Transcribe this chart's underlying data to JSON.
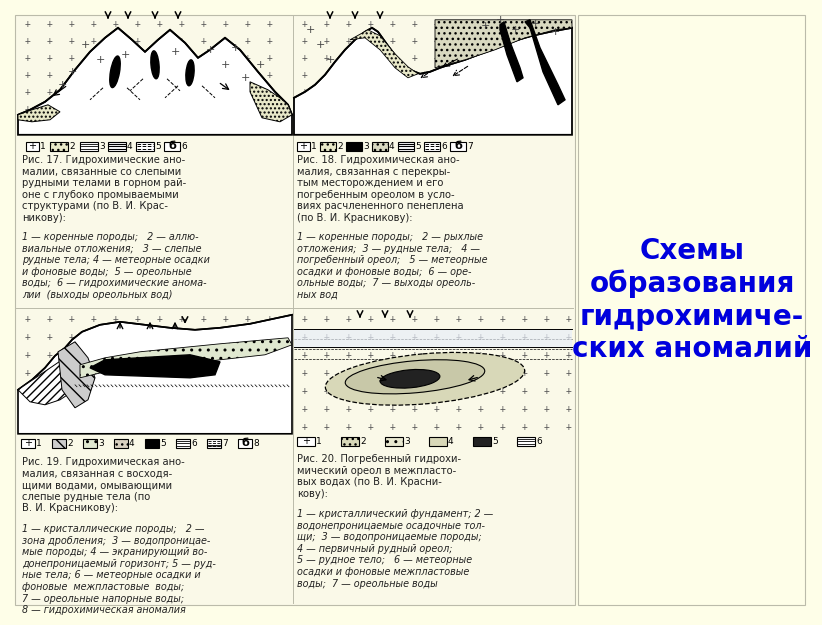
{
  "bg_color": "#fefee8",
  "content_bg": "#faf9e8",
  "right_bg": "#fefee8",
  "title_text": "Схемы\nобразования\nгидрохимиче-\nских аномалий",
  "title_color": "#0000dd",
  "title_fontsize": 20,
  "text_color": "#222222",
  "text_fontsize": 7.2,
  "fig17_caption": "Рис. 17. Гидрохимические ано-\nмалии, связанные со слепыми\nрудными телами в горном рай-\nоне с глубоко промываемыми\nструктурами (по В. И. Крас-\nникову):",
  "fig17_legend": "1 — коренные породы;   2 — аллю-\nвиальные отложения;   3 — слепые\nрудные тела; 4 — метеорные осадки\nи фоновые воды;  5 — ореольные\nводы;  6 — гидрохимические аномa-\nлии  (выходы ореольных вод)",
  "fig18_caption": "Рис. 18. Гидрохимическая ано-\nмалия, связанная с перекры-\nтым месторождением и его\nпогребенным ореолом в усло-\nвиях расчлененного пенеплена\n(по В. И. Красникову):",
  "fig18_legend": "1 — коренные породы;   2 — рыхлые\nотложения;  3 — рудные тела;   4 —\nпогребенный ореол;   5 — метеорные\nосадки и фоновые воды;  6 — оре-\nольные воды;  7 — выходы ореоль-\nных вод",
  "fig19_caption": "Рис. 19. Гидрохимическая ано-\nмалия, связанная с восходя-\nщими водами, омывающими\nслепые рудные тела (по\nВ. И. Красникову):",
  "fig19_legend": "1 — кристаллические породы;   2 —\nзона дробления;  3 — водопроницае-\nмые породы; 4 — экранирующий во-\nдонепроницаемый горизонт; 5 — руд-\nные тела; 6 — метеорные осадки и\nфоновые  межпластовые  воды;\n7 — ореольные напорные воды;\n8 — гидрохимическая аномалия",
  "fig20_caption": "Рис. 20. Погребенный гидрохи-\nмический ореол в межпласто-\nвых водах (по В. И. Красни-\nкову):",
  "fig20_legend": "1 — кристаллический фундамент; 2 —\nводонепроницаемые осадочные тол-\nщи;  3 — водопроницаемые породы;\n4 — первичный рудный ореол;\n5 — рудное тело;   6 — метеорные\nосадки и фоновые межпластовые\nводы;  7 — ореольные воды"
}
